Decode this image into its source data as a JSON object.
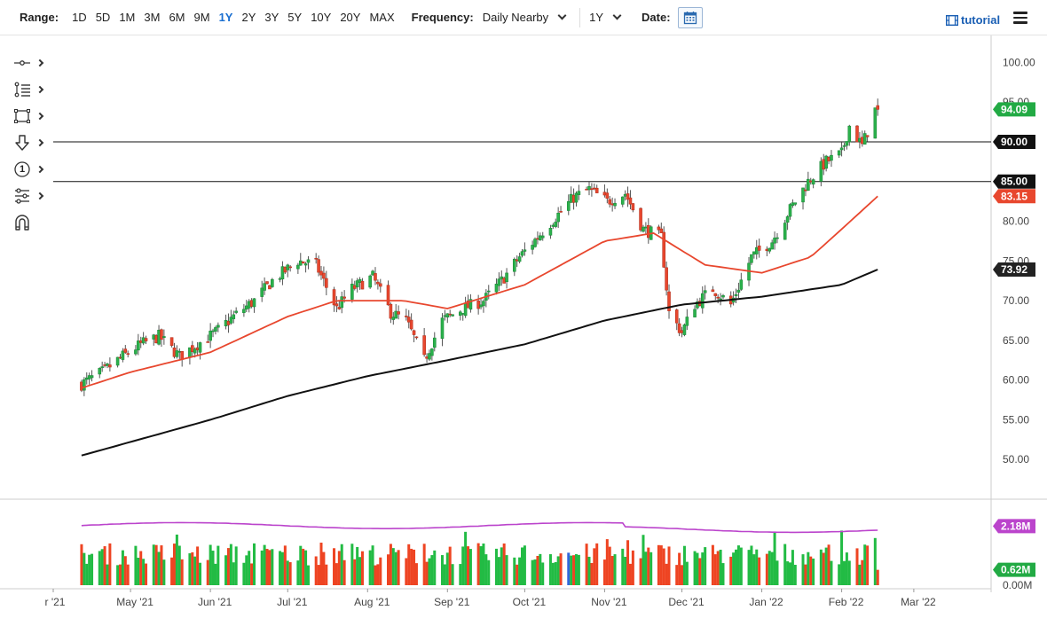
{
  "toolbar": {
    "range_label": "Range:",
    "ranges": [
      "1D",
      "5D",
      "1M",
      "3M",
      "6M",
      "9M",
      "1Y",
      "2Y",
      "3Y",
      "5Y",
      "10Y",
      "20Y",
      "MAX"
    ],
    "active_range": "1Y",
    "frequency_label": "Frequency:",
    "frequency_value": "Daily Nearby",
    "period_value": "1Y",
    "date_label": "Date:",
    "tutorial_label": "tutorial"
  },
  "tools": [
    {
      "icon": "crosshair-line-icon"
    },
    {
      "icon": "fibonacci-list-icon"
    },
    {
      "icon": "rectangle-shape-icon"
    },
    {
      "icon": "arrow-down-icon"
    },
    {
      "icon": "numbered-annotation-icon",
      "text": "1"
    },
    {
      "icon": "indicator-settings-icon"
    },
    {
      "icon": "magnet-icon"
    }
  ],
  "colors": {
    "up": "#2bb24c",
    "down": "#e8472e",
    "wick": "#555555",
    "ma50": "#e8472e",
    "ma200": "#111111",
    "volume_up": "#22bb44",
    "volume_down": "#ee4422",
    "volume_blue": "#3366dd",
    "volume_ma": "#bb44cc",
    "current_badge": "#22aa44",
    "ma50_badge": "#e8472e",
    "ma200_badge": "#222222",
    "level_badge": "#111111",
    "vol_ma_badge": "#bb44cc",
    "vol_last_badge": "#22aa44"
  },
  "chart_data": {
    "type": "candlestick",
    "x_start": "2021-04-12",
    "x_end": "2022-03-15",
    "price_ylim": [
      45.0,
      102.5
    ],
    "price_ticks": [
      "100.00",
      "95.00",
      "90.00",
      "85.00",
      "80.00",
      "75.00",
      "70.00",
      "65.00",
      "60.00",
      "55.00",
      "50.00"
    ],
    "x_ticks": [
      {
        "date": "2021-04-01",
        "label": "r '21"
      },
      {
        "date": "2021-05-01",
        "label": "May '21"
      },
      {
        "date": "2021-06-01",
        "label": "Jun '21"
      },
      {
        "date": "2021-07-01",
        "label": "Jul '21"
      },
      {
        "date": "2021-08-01",
        "label": "Aug '21"
      },
      {
        "date": "2021-09-01",
        "label": "Sep '21"
      },
      {
        "date": "2021-10-01",
        "label": "Oct '21"
      },
      {
        "date": "2021-11-01",
        "label": "Nov '21"
      },
      {
        "date": "2021-12-01",
        "label": "Dec '21"
      },
      {
        "date": "2022-01-01",
        "label": "Jan '22"
      },
      {
        "date": "2022-02-01",
        "label": "Feb '22"
      },
      {
        "date": "2022-03-01",
        "label": "Mar '22"
      }
    ],
    "price_path": [
      [
        "2021-04-12",
        59.5
      ],
      [
        "2021-04-20",
        61.0
      ],
      [
        "2021-04-28",
        63.0
      ],
      [
        "2021-05-05",
        64.5
      ],
      [
        "2021-05-12",
        65.5
      ],
      [
        "2021-05-20",
        63.0
      ],
      [
        "2021-05-27",
        64.5
      ],
      [
        "2021-06-03",
        66.0
      ],
      [
        "2021-06-10",
        68.0
      ],
      [
        "2021-06-18",
        70.0
      ],
      [
        "2021-06-25",
        72.5
      ],
      [
        "2021-07-05",
        75.0
      ],
      [
        "2021-07-12",
        74.5
      ],
      [
        "2021-07-20",
        69.0
      ],
      [
        "2021-07-26",
        71.5
      ],
      [
        "2021-08-03",
        73.0
      ],
      [
        "2021-08-10",
        68.5
      ],
      [
        "2021-08-16",
        67.5
      ],
      [
        "2021-08-23",
        62.5
      ],
      [
        "2021-08-30",
        67.5
      ],
      [
        "2021-09-07",
        69.0
      ],
      [
        "2021-09-15",
        70.0
      ],
      [
        "2021-09-22",
        72.5
      ],
      [
        "2021-09-29",
        75.5
      ],
      [
        "2021-10-06",
        78.0
      ],
      [
        "2021-10-13",
        80.5
      ],
      [
        "2021-10-20",
        83.0
      ],
      [
        "2021-10-26",
        84.0
      ],
      [
        "2021-11-02",
        82.5
      ],
      [
        "2021-11-09",
        83.5
      ],
      [
        "2021-11-16",
        79.0
      ],
      [
        "2021-11-23",
        78.0
      ],
      [
        "2021-11-26",
        68.5
      ],
      [
        "2021-12-01",
        66.0
      ],
      [
        "2021-12-06",
        69.5
      ],
      [
        "2021-12-13",
        71.5
      ],
      [
        "2021-12-20",
        69.5
      ],
      [
        "2021-12-28",
        75.5
      ],
      [
        "2022-01-05",
        77.5
      ],
      [
        "2022-01-12",
        81.5
      ],
      [
        "2022-01-19",
        85.0
      ],
      [
        "2022-01-26",
        87.5
      ],
      [
        "2022-02-01",
        88.5
      ],
      [
        "2022-02-04",
        92.0
      ],
      [
        "2022-02-09",
        89.5
      ],
      [
        "2022-02-14",
        94.0
      ],
      [
        "2022-02-15",
        94.09
      ]
    ],
    "ma50": [
      [
        "2021-04-12",
        59.0
      ],
      [
        "2021-05-01",
        61.0
      ],
      [
        "2021-06-01",
        63.5
      ],
      [
        "2021-07-01",
        68.0
      ],
      [
        "2021-07-20",
        70.0
      ],
      [
        "2021-08-15",
        70.0
      ],
      [
        "2021-09-01",
        69.0
      ],
      [
        "2021-10-01",
        72.0
      ],
      [
        "2021-11-01",
        77.5
      ],
      [
        "2021-11-20",
        78.5
      ],
      [
        "2021-12-10",
        74.5
      ],
      [
        "2022-01-01",
        73.5
      ],
      [
        "2022-01-20",
        75.5
      ],
      [
        "2022-02-01",
        79.0
      ],
      [
        "2022-02-15",
        83.15
      ]
    ],
    "ma200": [
      [
        "2021-04-12",
        50.5
      ],
      [
        "2021-06-01",
        55.0
      ],
      [
        "2021-07-01",
        58.0
      ],
      [
        "2021-08-01",
        60.5
      ],
      [
        "2021-09-01",
        62.5
      ],
      [
        "2021-10-01",
        64.5
      ],
      [
        "2021-11-01",
        67.5
      ],
      [
        "2021-12-01",
        69.5
      ],
      [
        "2022-01-01",
        70.5
      ],
      [
        "2022-02-01",
        72.0
      ],
      [
        "2022-02-15",
        73.92
      ]
    ],
    "levels": [
      90.0,
      85.0
    ],
    "badges": {
      "current": "94.09",
      "ma50": "83.15",
      "ma200": "73.92",
      "level_90": "90.00",
      "level_85": "85.00"
    },
    "volume": {
      "ylim_m": [
        0,
        3.0
      ],
      "ma_m": 2.18,
      "last_m": 0.62,
      "axis_label": "0.00M",
      "ma_badge": "2.18M",
      "last_badge": "0.62M"
    }
  }
}
